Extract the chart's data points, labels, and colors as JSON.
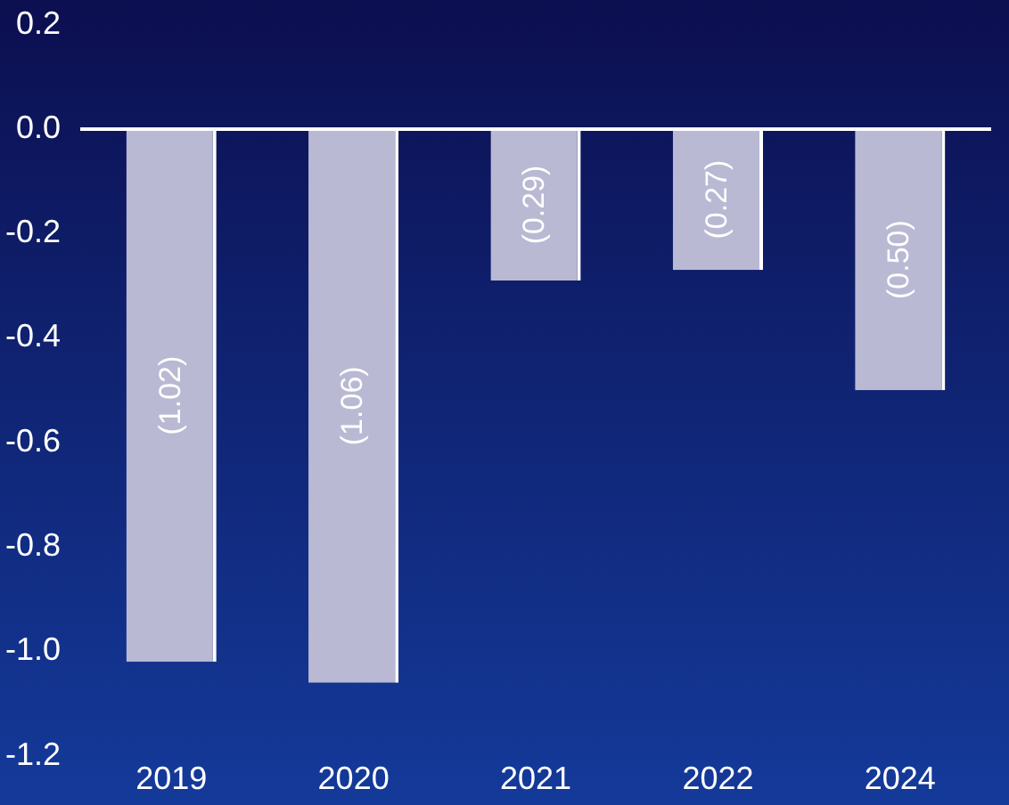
{
  "chart_data": {
    "type": "bar",
    "categories": [
      "2019",
      "2020",
      "2021",
      "2022",
      "2024"
    ],
    "values": [
      -1.02,
      -1.06,
      -0.29,
      -0.27,
      -0.5
    ],
    "value_labels": [
      "(1.02)",
      "(1.06)",
      "(0.29)",
      "(0.27)",
      "(0.50)"
    ],
    "colors": [
      "#b9b9d3",
      "#b9b9d3",
      "#b9b9d3",
      "#b9b9d3",
      "#b9b9d3"
    ],
    "ylim": [
      -1.2,
      0.2
    ],
    "yticks": [
      {
        "value": 0.2,
        "label": "0.2"
      },
      {
        "value": 0,
        "label": "0.0"
      },
      {
        "value": -0.2,
        "label": "-0.2"
      },
      {
        "value": -0.4,
        "label": "-0.4"
      },
      {
        "value": -0.6,
        "label": "-0.6"
      },
      {
        "value": -0.8,
        "label": "-0.8"
      },
      {
        "value": -1.0,
        "label": "-1.0"
      },
      {
        "value": -1.2,
        "label": "-1.2"
      }
    ],
    "ref_lines": [
      {
        "axis": "y",
        "value": 0,
        "color": "#ffffff"
      }
    ],
    "grid": false,
    "legend": false
  }
}
